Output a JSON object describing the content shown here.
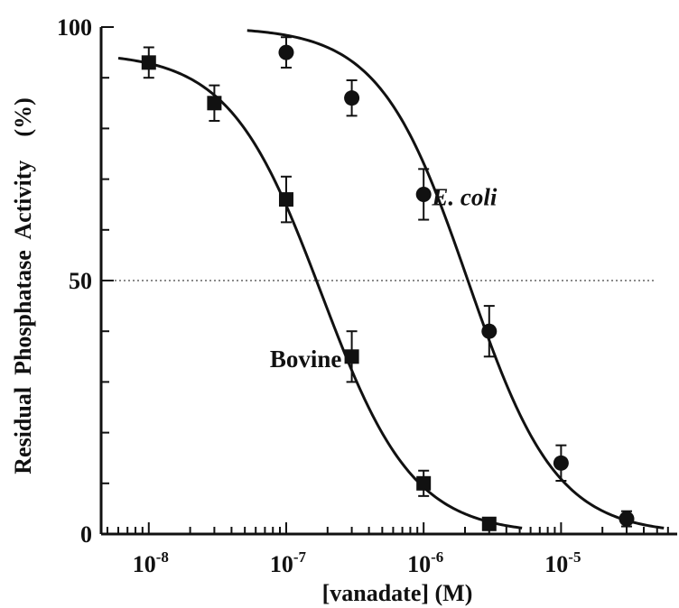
{
  "chart_data": {
    "type": "scatter",
    "title": "",
    "xlabel": "[vanadate]   (M)",
    "ylabel": "Residual  Phosphatase  Activity    (%)",
    "x_scale": "log",
    "xlim": [
      4.5e-09,
      7e-05
    ],
    "ylim": [
      0,
      100
    ],
    "x_ticks": [
      {
        "value": 1e-08,
        "base": "10",
        "exp": "-8"
      },
      {
        "value": 1e-07,
        "base": "10",
        "exp": "-7"
      },
      {
        "value": 1e-06,
        "base": "10",
        "exp": "-6"
      },
      {
        "value": 1e-05,
        "base": "10",
        "exp": "-5"
      }
    ],
    "y_ticks": [
      {
        "value": 0,
        "label": "0"
      },
      {
        "value": 50,
        "label": "50"
      },
      {
        "value": 100,
        "label": "100"
      }
    ],
    "reference_line": {
      "y": 50,
      "style": "dotted"
    },
    "series": [
      {
        "name": "Bovine",
        "marker": "square",
        "x": [
          1e-08,
          3e-08,
          1e-07,
          3e-07,
          1e-06,
          3e-06
        ],
        "y": [
          93,
          85,
          66,
          35,
          10,
          2
        ],
        "error": [
          3,
          3.5,
          4.5,
          5,
          2.5,
          1
        ],
        "fit": {
          "top": 95,
          "ic50": 1.8e-07,
          "hill": 1.3,
          "x_range": [
            6e-09,
            5.2e-06
          ]
        },
        "label_pos": {
          "x": 7.6e-08,
          "y": 34.5
        }
      },
      {
        "name": "E. coli",
        "marker": "circle",
        "x": [
          1e-07,
          3e-07,
          1e-06,
          3e-06,
          1e-05,
          3e-05
        ],
        "y": [
          95,
          86,
          67,
          40,
          14,
          3
        ],
        "error": [
          3,
          3.5,
          5,
          5,
          3.5,
          1.5
        ],
        "fit": {
          "top": 100,
          "ic50": 2.1e-06,
          "hill": 1.35,
          "x_range": [
            5.2e-08,
            5.6e-05
          ]
        },
        "label_pos": {
          "x": 1.15e-06,
          "y": 66.5
        },
        "label_italic": true
      }
    ]
  }
}
